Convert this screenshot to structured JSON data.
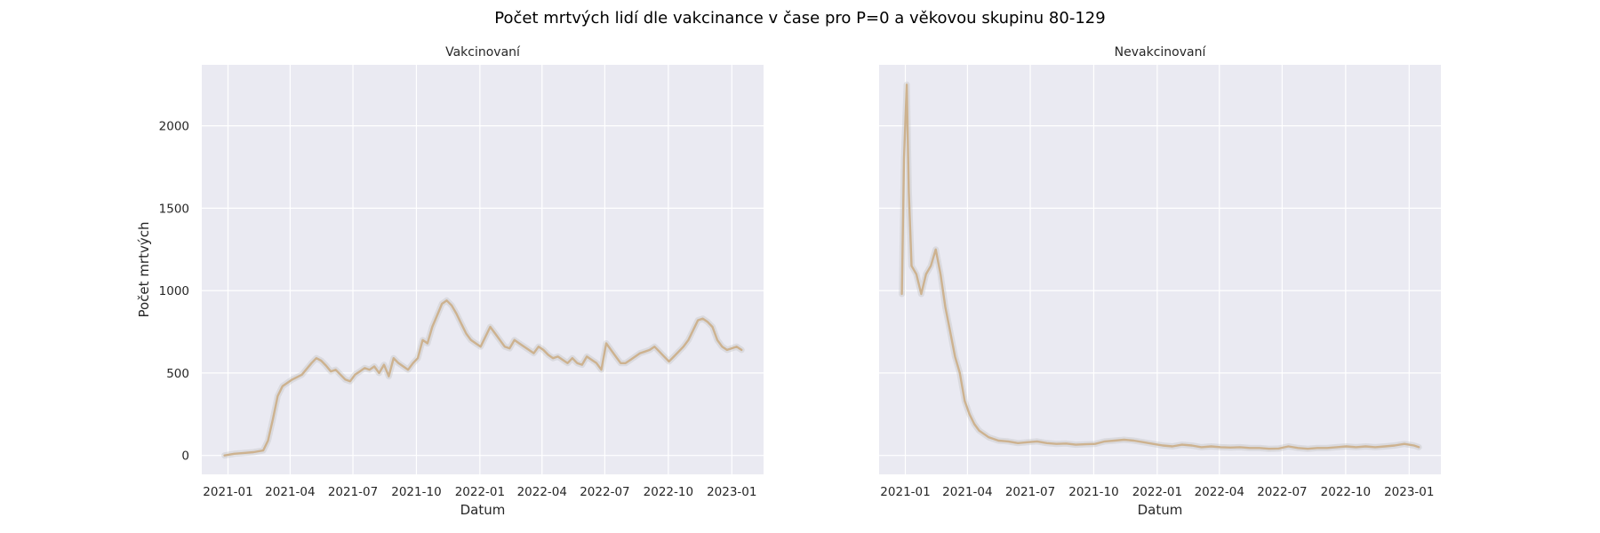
{
  "figure": {
    "title": "Počet mrtvých lidí dle vakcinance v čase pro P=0 a věkovou skupinu 80-129"
  },
  "style": {
    "panel_background": "#eaeaf2",
    "grid_color": "#ffffff",
    "line_color": "#cdb28f",
    "band_color": "#bdbdbd"
  },
  "chart_data": [
    {
      "type": "line",
      "title": "Vakcinovaní",
      "xlabel": "Datum",
      "ylabel": "Počet mrtvých",
      "x_ticks": [
        "2021-01",
        "2021-04",
        "2021-07",
        "2021-10",
        "2022-01",
        "2022-04",
        "2022-07",
        "2022-10",
        "2023-01"
      ],
      "y_ticks": [
        0,
        500,
        1000,
        1500,
        2000
      ],
      "xlim": [
        "2020-11-24",
        "2023-02-16"
      ],
      "ylim": [
        -115,
        2370
      ],
      "grid": true,
      "series": [
        {
          "x": [
            "2020-12-27",
            "2021-01-10",
            "2021-01-24",
            "2021-02-07",
            "2021-02-21",
            "2021-02-28",
            "2021-03-07",
            "2021-03-14",
            "2021-03-21",
            "2021-04-04",
            "2021-04-18",
            "2021-05-02",
            "2021-05-09",
            "2021-05-16",
            "2021-05-23",
            "2021-05-30",
            "2021-06-06",
            "2021-06-13",
            "2021-06-20",
            "2021-06-27",
            "2021-07-04",
            "2021-07-11",
            "2021-07-18",
            "2021-07-25",
            "2021-08-01",
            "2021-08-08",
            "2021-08-15",
            "2021-08-22",
            "2021-08-29",
            "2021-09-05",
            "2021-09-12",
            "2021-09-19",
            "2021-09-26",
            "2021-10-03",
            "2021-10-10",
            "2021-10-17",
            "2021-10-24",
            "2021-10-31",
            "2021-11-07",
            "2021-11-14",
            "2021-11-21",
            "2021-11-28",
            "2021-12-05",
            "2021-12-12",
            "2021-12-19",
            "2021-12-26",
            "2022-01-02",
            "2022-01-09",
            "2022-01-16",
            "2022-01-23",
            "2022-01-30",
            "2022-02-06",
            "2022-02-13",
            "2022-02-20",
            "2022-02-27",
            "2022-03-06",
            "2022-03-13",
            "2022-03-20",
            "2022-03-27",
            "2022-04-03",
            "2022-04-10",
            "2022-04-17",
            "2022-04-24",
            "2022-05-01",
            "2022-05-08",
            "2022-05-15",
            "2022-05-22",
            "2022-05-29",
            "2022-06-05",
            "2022-06-12",
            "2022-06-19",
            "2022-06-26",
            "2022-07-03",
            "2022-07-10",
            "2022-07-17",
            "2022-07-24",
            "2022-07-31",
            "2022-08-07",
            "2022-08-14",
            "2022-08-21",
            "2022-08-28",
            "2022-09-04",
            "2022-09-11",
            "2022-09-18",
            "2022-09-25",
            "2022-10-02",
            "2022-10-09",
            "2022-10-16",
            "2022-10-23",
            "2022-10-30",
            "2022-11-06",
            "2022-11-13",
            "2022-11-20",
            "2022-11-27",
            "2022-12-04",
            "2022-12-11",
            "2022-12-18",
            "2022-12-25",
            "2023-01-01",
            "2023-01-08",
            "2023-01-15"
          ],
          "y": [
            0,
            10,
            15,
            20,
            30,
            90,
            220,
            360,
            420,
            460,
            490,
            560,
            590,
            575,
            545,
            510,
            520,
            490,
            460,
            450,
            490,
            510,
            530,
            520,
            540,
            500,
            550,
            480,
            590,
            560,
            540,
            520,
            560,
            590,
            700,
            680,
            780,
            850,
            920,
            940,
            910,
            860,
            800,
            740,
            700,
            680,
            660,
            720,
            780,
            740,
            700,
            660,
            650,
            700,
            680,
            660,
            640,
            620,
            660,
            640,
            610,
            590,
            600,
            580,
            560,
            590,
            560,
            550,
            600,
            580,
            560,
            520,
            680,
            640,
            600,
            560,
            560,
            580,
            600,
            620,
            630,
            640,
            660,
            630,
            600,
            570,
            600,
            630,
            660,
            700,
            760,
            820,
            830,
            810,
            780,
            700,
            660,
            640,
            650,
            660,
            640
          ]
        }
      ]
    },
    {
      "type": "line",
      "title": "Nevakcinovaní",
      "xlabel": "Datum",
      "ylabel": "",
      "x_ticks": [
        "2021-01",
        "2021-04",
        "2021-07",
        "2021-10",
        "2022-01",
        "2022-04",
        "2022-07",
        "2022-10",
        "2023-01"
      ],
      "y_ticks": [
        0,
        500,
        1000,
        1500,
        2000
      ],
      "xlim": [
        "2020-11-24",
        "2023-02-16"
      ],
      "ylim": [
        -115,
        2370
      ],
      "grid": true,
      "series": [
        {
          "x": [
            "2020-12-27",
            "2020-12-30",
            "2021-01-03",
            "2021-01-06",
            "2021-01-10",
            "2021-01-17",
            "2021-01-24",
            "2021-01-31",
            "2021-02-07",
            "2021-02-14",
            "2021-02-21",
            "2021-02-28",
            "2021-03-07",
            "2021-03-14",
            "2021-03-21",
            "2021-03-28",
            "2021-04-04",
            "2021-04-11",
            "2021-04-18",
            "2021-05-02",
            "2021-05-16",
            "2021-05-30",
            "2021-06-13",
            "2021-06-27",
            "2021-07-11",
            "2021-07-25",
            "2021-08-08",
            "2021-08-22",
            "2021-09-05",
            "2021-09-19",
            "2021-10-03",
            "2021-10-17",
            "2021-10-31",
            "2021-11-14",
            "2021-11-28",
            "2021-12-12",
            "2021-12-26",
            "2022-01-09",
            "2022-01-23",
            "2022-02-06",
            "2022-02-20",
            "2022-03-06",
            "2022-03-20",
            "2022-04-03",
            "2022-04-17",
            "2022-05-01",
            "2022-05-15",
            "2022-05-29",
            "2022-06-12",
            "2022-06-26",
            "2022-07-10",
            "2022-07-24",
            "2022-08-07",
            "2022-08-21",
            "2022-09-04",
            "2022-09-18",
            "2022-10-02",
            "2022-10-16",
            "2022-10-30",
            "2022-11-13",
            "2022-11-27",
            "2022-12-11",
            "2022-12-25",
            "2023-01-08",
            "2023-01-15"
          ],
          "y": [
            980,
            1800,
            2250,
            1600,
            1150,
            1100,
            980,
            1100,
            1150,
            1250,
            1100,
            900,
            750,
            600,
            500,
            330,
            250,
            190,
            150,
            110,
            90,
            85,
            75,
            80,
            85,
            75,
            70,
            72,
            65,
            68,
            70,
            85,
            90,
            95,
            90,
            80,
            70,
            60,
            55,
            65,
            60,
            50,
            55,
            50,
            48,
            50,
            45,
            45,
            40,
            42,
            55,
            45,
            40,
            45,
            45,
            50,
            55,
            50,
            55,
            50,
            55,
            60,
            70,
            60,
            50
          ]
        }
      ]
    }
  ]
}
